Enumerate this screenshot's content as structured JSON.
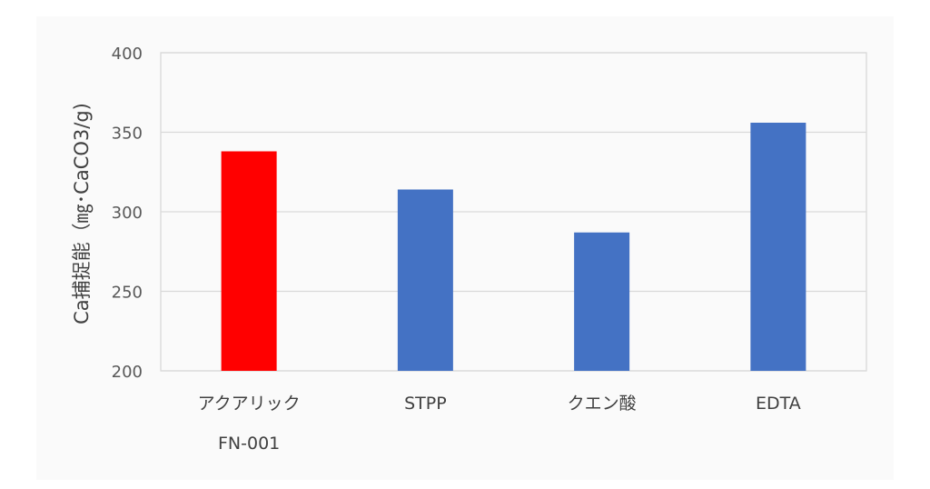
{
  "chart_data": {
    "type": "bar",
    "categories": [
      [
        "アクアリック",
        "FN-001"
      ],
      [
        "STPP"
      ],
      [
        "クエン酸"
      ],
      [
        "EDTA"
      ]
    ],
    "values": [
      338,
      314,
      287,
      356
    ],
    "bar_colors": [
      "#ff0000",
      "#4472c4",
      "#4472c4",
      "#4472c4"
    ],
    "title": "",
    "xlabel": "",
    "ylabel": "Ca捕捉能（㎎･CaCO3/g)",
    "ylim": [
      200,
      400
    ],
    "yticks": [
      200,
      250,
      300,
      350,
      400
    ],
    "grid": true,
    "legend": "none"
  }
}
